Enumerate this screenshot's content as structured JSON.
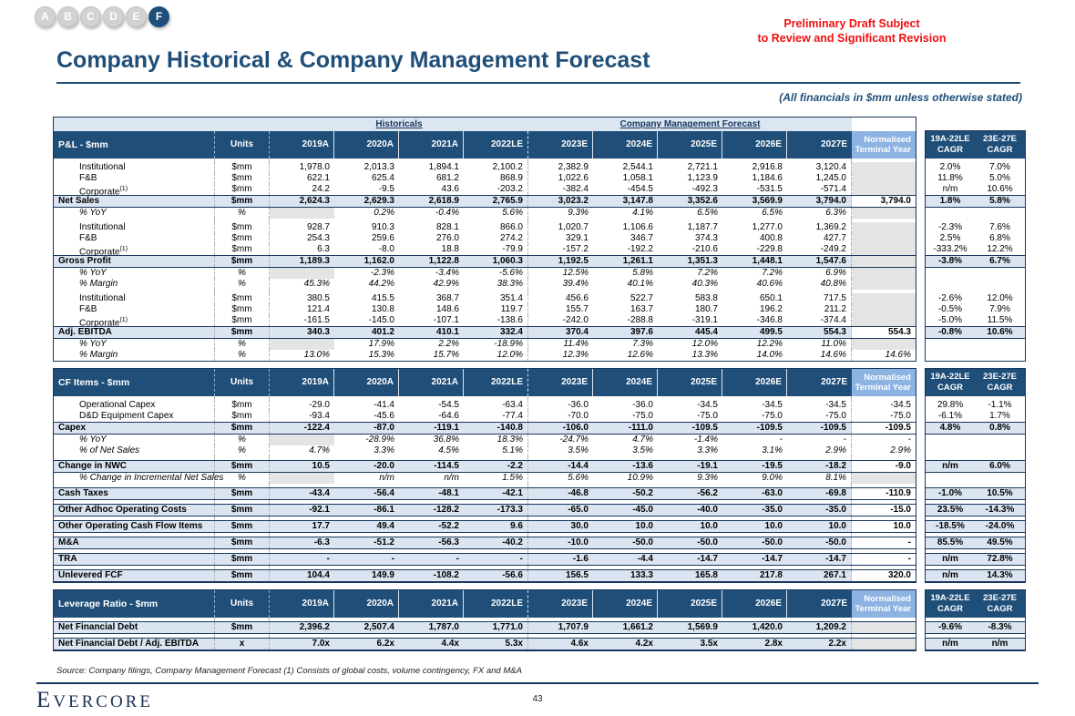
{
  "page": {
    "tabs": [
      "A",
      "B",
      "C",
      "D",
      "E",
      "F"
    ],
    "active_tab": "F",
    "disclaimer_line1": "Preliminary Draft Subject",
    "disclaimer_line2": "to Review and Significant Revision",
    "title": "Company Historical & Company Management Forecast",
    "subtitle": "(All financials in $mm unless otherwise stated)",
    "source_note": "Source: Company filings, Company Management Forecast (1) Consists of global costs, volume contingency, FX and M&A",
    "logo_text": "Evercore",
    "page_number": "43"
  },
  "colors": {
    "header_navy": "#1f4e79",
    "border_navy": "#17375e",
    "band_blue": "#dce6f1",
    "total_row_blue": "#dbe5f1",
    "nty_header_blue": "#8db3e2",
    "blank_gray": "#e4e4e4",
    "warning_red": "#ee1111"
  },
  "table": {
    "banner": {
      "historicals": "Historicals",
      "forecast": "Company Management Forecast"
    },
    "units_header": "Units",
    "years": [
      "2019A",
      "2020A",
      "2021A",
      "2022LE",
      "2023E",
      "2024E",
      "2025E",
      "2026E",
      "2027E"
    ],
    "nty_header": [
      "Normalised",
      "Terminal Year"
    ],
    "cagr_headers": [
      [
        "19A-22LE",
        "CAGR"
      ],
      [
        "23E-27E",
        "CAGR"
      ]
    ],
    "sections": [
      {
        "title": "P&L - $mm",
        "rows": [
          {
            "style": "spacer"
          },
          {
            "style": "item",
            "label": "Institutional",
            "unit": "$mm",
            "cells": [
              "1,978.0",
              "2,013.3",
              "1,894.1",
              "2,100.2",
              "2,382.9",
              "2,544.1",
              "2,721.1",
              "2,916.8",
              "3,120.4"
            ],
            "nty": null,
            "cagr": [
              "2.0%",
              "7.0%"
            ]
          },
          {
            "style": "item",
            "label": "F&B",
            "unit": "$mm",
            "cells": [
              "622.1",
              "625.4",
              "681.2",
              "868.9",
              "1,022.6",
              "1,058.1",
              "1,123.9",
              "1,184.6",
              "1,245.0"
            ],
            "nty": null,
            "cagr": [
              "11.8%",
              "5.0%"
            ]
          },
          {
            "style": "item",
            "label": "Corporate",
            "sup": "(1)",
            "unit": "$mm",
            "cells": [
              "24.2",
              "-9.5",
              "43.6",
              "-203.2",
              "-382.4",
              "-454.5",
              "-492.3",
              "-531.5",
              "-571.4"
            ],
            "nty": null,
            "cagr": [
              "n/m",
              "10.6%"
            ]
          },
          {
            "style": "total",
            "label": "Net Sales",
            "unit": "$mm",
            "cells": [
              "2,624.3",
              "2,629.3",
              "2,618.9",
              "2,765.9",
              "3,023.2",
              "3,147.8",
              "3,352.6",
              "3,569.9",
              "3,794.0"
            ],
            "nty": "3,794.0",
            "cagr": [
              "1.8%",
              "5.8%"
            ]
          },
          {
            "style": "pct",
            "label": "% YoY",
            "unit": "%",
            "cells": [
              null,
              "0.2%",
              "-0.4%",
              "5.6%",
              "9.3%",
              "4.1%",
              "6.5%",
              "6.5%",
              "6.3%"
            ],
            "nty": null,
            "cagr": [
              "",
              ""
            ]
          },
          {
            "style": "spacer"
          },
          {
            "style": "item",
            "label": "Institutional",
            "unit": "$mm",
            "cells": [
              "928.7",
              "910.3",
              "828.1",
              "866.0",
              "1,020.7",
              "1,106.6",
              "1,187.7",
              "1,277.0",
              "1,369.2"
            ],
            "nty": null,
            "cagr": [
              "-2.3%",
              "7.6%"
            ]
          },
          {
            "style": "item",
            "label": "F&B",
            "unit": "$mm",
            "cells": [
              "254.3",
              "259.6",
              "276.0",
              "274.2",
              "329.1",
              "346.7",
              "374.3",
              "400.8",
              "427.7"
            ],
            "nty": null,
            "cagr": [
              "2.5%",
              "6.8%"
            ]
          },
          {
            "style": "item",
            "label": "Corporate",
            "sup": "(1)",
            "unit": "$mm",
            "cells": [
              "6.3",
              "-8.0",
              "18.8",
              "-79.9",
              "-157.2",
              "-192.2",
              "-210.6",
              "-229.8",
              "-249.2"
            ],
            "nty": null,
            "cagr": [
              "-333.2%",
              "12.2%"
            ]
          },
          {
            "style": "total",
            "label": "Gross Profit",
            "unit": "$mm",
            "cells": [
              "1,189.3",
              "1,162.0",
              "1,122.8",
              "1,060.3",
              "1,192.5",
              "1,261.1",
              "1,351.3",
              "1,448.1",
              "1,547.6"
            ],
            "nty": null,
            "cagr": [
              "-3.8%",
              "6.7%"
            ]
          },
          {
            "style": "pct",
            "label": "% YoY",
            "unit": "%",
            "cells": [
              null,
              "-2.3%",
              "-3.4%",
              "-5.6%",
              "12.5%",
              "5.8%",
              "7.2%",
              "7.2%",
              "6.9%"
            ],
            "nty": null,
            "cagr": [
              "",
              ""
            ]
          },
          {
            "style": "pct",
            "label": "% Margin",
            "unit": "%",
            "cells": [
              "45.3%",
              "44.2%",
              "42.9%",
              "38.3%",
              "39.4%",
              "40.1%",
              "40.3%",
              "40.6%",
              "40.8%"
            ],
            "nty": null,
            "cagr": [
              "",
              ""
            ]
          },
          {
            "style": "spacer"
          },
          {
            "style": "item",
            "label": "Institutional",
            "unit": "$mm",
            "cells": [
              "380.5",
              "415.5",
              "368.7",
              "351.4",
              "456.6",
              "522.7",
              "583.8",
              "650.1",
              "717.5"
            ],
            "nty": null,
            "cagr": [
              "-2.6%",
              "12.0%"
            ]
          },
          {
            "style": "item",
            "label": "F&B",
            "unit": "$mm",
            "cells": [
              "121.4",
              "130.8",
              "148.6",
              "119.7",
              "155.7",
              "163.7",
              "180.7",
              "196.2",
              "211.2"
            ],
            "nty": null,
            "cagr": [
              "-0.5%",
              "7.9%"
            ]
          },
          {
            "style": "item",
            "label": "Corporate",
            "sup": "(1)",
            "unit": "$mm",
            "cells": [
              "-161.5",
              "-145.0",
              "-107.1",
              "-138.6",
              "-242.0",
              "-288.8",
              "-319.1",
              "-346.8",
              "-374.4"
            ],
            "nty": null,
            "cagr": [
              "-5.0%",
              "11.5%"
            ]
          },
          {
            "style": "total",
            "label": "Adj. EBITDA",
            "unit": "$mm",
            "cells": [
              "340.3",
              "401.2",
              "410.1",
              "332.4",
              "370.4",
              "397.6",
              "445.4",
              "499.5",
              "554.3"
            ],
            "nty": "554.3",
            "cagr": [
              "-0.8%",
              "10.6%"
            ]
          },
          {
            "style": "pct",
            "label": "% YoY",
            "unit": "%",
            "cells": [
              null,
              "17.9%",
              "2.2%",
              "-18.9%",
              "11.4%",
              "7.3%",
              "12.0%",
              "12.2%",
              "11.0%"
            ],
            "nty": null,
            "cagr": [
              "",
              ""
            ]
          },
          {
            "style": "pct",
            "label": "% Margin",
            "unit": "%",
            "cells": [
              "13.0%",
              "15.3%",
              "15.7%",
              "12.0%",
              "12.3%",
              "12.6%",
              "13.3%",
              "14.0%",
              "14.6%"
            ],
            "nty": "14.6%",
            "cagr": [
              "",
              ""
            ]
          }
        ]
      },
      {
        "title": "CF Items - $mm",
        "rows": [
          {
            "style": "spacer"
          },
          {
            "style": "item",
            "label": "Operational Capex",
            "unit": "$mm",
            "cells": [
              "-29.0",
              "-41.4",
              "-54.5",
              "-63.4",
              "-36.0",
              "-36.0",
              "-34.5",
              "-34.5",
              "-34.5"
            ],
            "nty": "-34.5",
            "cagr": [
              "29.8%",
              "-1.1%"
            ]
          },
          {
            "style": "item",
            "label": "D&D Equipment Capex",
            "unit": "$mm",
            "cells": [
              "-93.4",
              "-45.6",
              "-64.6",
              "-77.4",
              "-70.0",
              "-75.0",
              "-75.0",
              "-75.0",
              "-75.0"
            ],
            "nty": "-75.0",
            "cagr": [
              "-6.1%",
              "1.7%"
            ]
          },
          {
            "style": "total",
            "label": "Capex",
            "unit": "$mm",
            "cells": [
              "-122.4",
              "-87.0",
              "-119.1",
              "-140.8",
              "-106.0",
              "-111.0",
              "-109.5",
              "-109.5",
              "-109.5"
            ],
            "nty": "-109.5",
            "cagr": [
              "4.8%",
              "0.8%"
            ]
          },
          {
            "style": "pct",
            "label": "% YoY",
            "unit": "%",
            "cells": [
              null,
              "-28.9%",
              "36.8%",
              "18.3%",
              "-24.7%",
              "4.7%",
              "-1.4%",
              "-",
              "-"
            ],
            "nty": "-",
            "cagr": [
              "",
              ""
            ]
          },
          {
            "style": "pct",
            "label": "% of Net Sales",
            "unit": "%",
            "cells": [
              "4.7%",
              "3.3%",
              "4.5%",
              "5.1%",
              "3.5%",
              "3.5%",
              "3.3%",
              "3.1%",
              "2.9%"
            ],
            "nty": "2.9%",
            "cagr": [
              "",
              ""
            ]
          },
          {
            "style": "spacer"
          },
          {
            "style": "total",
            "label": "Change in NWC",
            "unit": "$mm",
            "cells": [
              "10.5",
              "-20.0",
              "-114.5",
              "-2.2",
              "-14.4",
              "-13.6",
              "-19.1",
              "-19.5",
              "-18.2"
            ],
            "nty": "-9.0",
            "cagr": [
              "n/m",
              "6.0%"
            ]
          },
          {
            "style": "pct",
            "label": "% Change in Incremental Net Sales",
            "unit": "%",
            "cells": [
              null,
              "n/m",
              "n/m",
              "1.5%",
              "5.6%",
              "10.9%",
              "9.3%",
              "9.0%",
              "8.1%"
            ],
            "nty": null,
            "cagr": [
              "",
              ""
            ]
          },
          {
            "style": "spacer"
          },
          {
            "style": "total",
            "label": "Cash Taxes",
            "unit": "$mm",
            "cells": [
              "-43.4",
              "-56.4",
              "-48.1",
              "-42.1",
              "-46.8",
              "-50.2",
              "-56.2",
              "-63.0",
              "-69.8"
            ],
            "nty": "-110.9",
            "cagr": [
              "-1.0%",
              "10.5%"
            ]
          },
          {
            "style": "spacer"
          },
          {
            "style": "total",
            "label": "Other Adhoc Operating Costs",
            "unit": "$mm",
            "cells": [
              "-92.1",
              "-86.1",
              "-128.2",
              "-173.3",
              "-65.0",
              "-45.0",
              "-40.0",
              "-35.0",
              "-35.0"
            ],
            "nty": "-15.0",
            "cagr": [
              "23.5%",
              "-14.3%"
            ]
          },
          {
            "style": "spacer"
          },
          {
            "style": "total",
            "label": "Other Operating Cash Flow Items",
            "unit": "$mm",
            "cells": [
              "17.7",
              "49.4",
              "-52.2",
              "9.6",
              "30.0",
              "10.0",
              "10.0",
              "10.0",
              "10.0"
            ],
            "nty": "10.0",
            "cagr": [
              "-18.5%",
              "-24.0%"
            ]
          },
          {
            "style": "spacer"
          },
          {
            "style": "total",
            "label": "M&A",
            "unit": "$mm",
            "cells": [
              "-6.3",
              "-51.2",
              "-56.3",
              "-40.2",
              "-10.0",
              "-50.0",
              "-50.0",
              "-50.0",
              "-50.0"
            ],
            "nty": "-",
            "cagr": [
              "85.5%",
              "49.5%"
            ]
          },
          {
            "style": "spacer"
          },
          {
            "style": "total",
            "label": "TRA",
            "unit": "$mm",
            "cells": [
              "-",
              "-",
              "-",
              "-",
              "-1.6",
              "-4.4",
              "-14.7",
              "-14.7",
              "-14.7"
            ],
            "nty": "-",
            "cagr": [
              "n/m",
              "72.8%"
            ]
          },
          {
            "style": "spacer"
          },
          {
            "style": "total",
            "label": "Unlevered FCF",
            "unit": "$mm",
            "cells": [
              "104.4",
              "149.9",
              "-108.2",
              "-56.6",
              "156.5",
              "133.3",
              "165.8",
              "217.8",
              "267.1"
            ],
            "nty": "320.0",
            "cagr": [
              "n/m",
              "14.3%"
            ]
          }
        ]
      },
      {
        "title": "Leverage Ratio - $mm",
        "rows": [
          {
            "style": "spacer"
          },
          {
            "style": "total",
            "label": "Net Financial Debt",
            "unit": "$mm",
            "cells": [
              "2,396.2",
              "2,507.4",
              "1,787.0",
              "1,771.0",
              "1,707.9",
              "1,661.2",
              "1,569.9",
              "1,420.0",
              "1,209.2"
            ],
            "nty": null,
            "cagr": [
              "-9.6%",
              "-8.3%"
            ]
          },
          {
            "style": "spacer"
          },
          {
            "style": "total",
            "label": "Net Financial Debt / Adj. EBITDA",
            "unit": "x",
            "cells": [
              "7.0x",
              "6.2x",
              "4.4x",
              "5.3x",
              "4.6x",
              "4.2x",
              "3.5x",
              "2.8x",
              "2.2x"
            ],
            "nty": null,
            "cagr": [
              "n/m",
              "n/m"
            ]
          }
        ]
      }
    ]
  }
}
